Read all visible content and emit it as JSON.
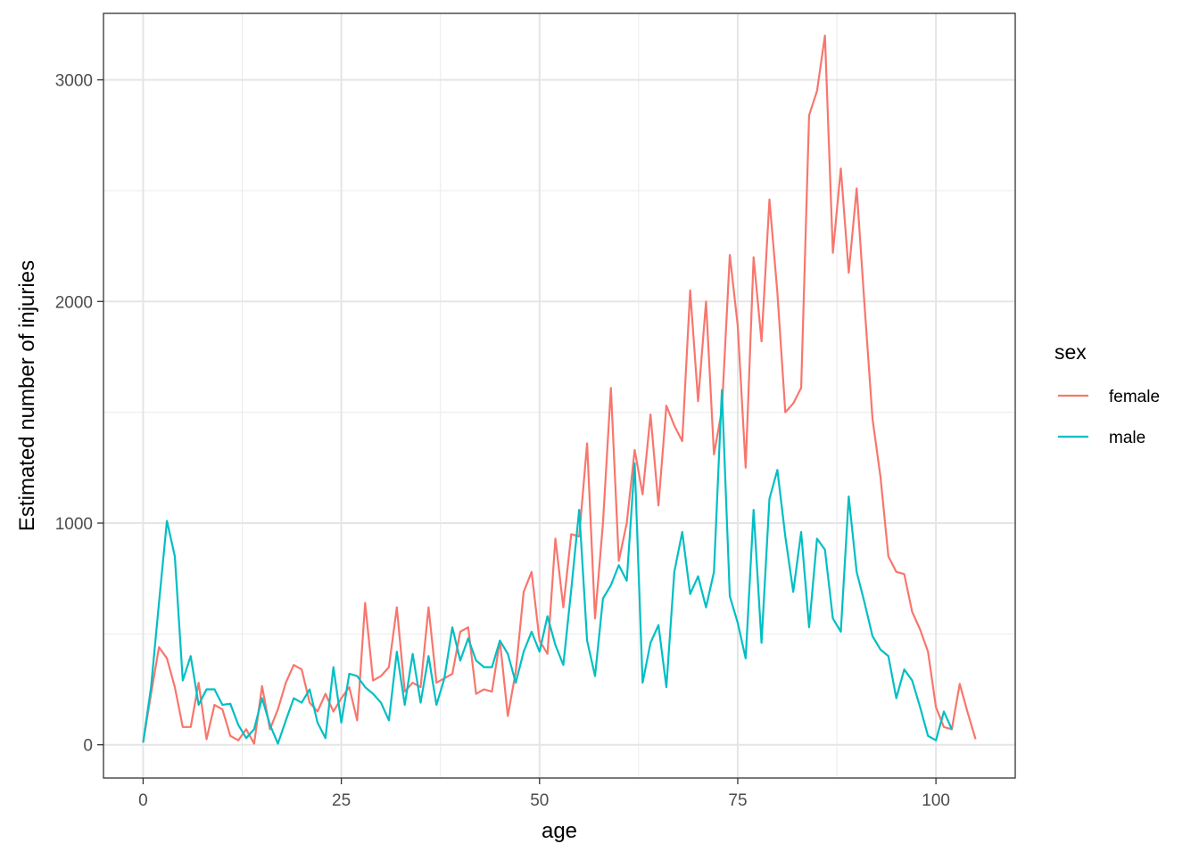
{
  "chart_data": {
    "type": "line",
    "xlabel": "age",
    "ylabel": "Estimated number of injuries",
    "xlim": [
      -5,
      110
    ],
    "ylim": [
      -150,
      3300
    ],
    "x_ticks": [
      0,
      25,
      50,
      75,
      100
    ],
    "y_ticks": [
      0,
      1000,
      2000,
      3000
    ],
    "grid": true,
    "legend": {
      "title": "sex",
      "position": "right"
    },
    "series": [
      {
        "name": "female",
        "color": "#F8766D",
        "x": [
          0,
          1,
          2,
          3,
          4,
          5,
          6,
          7,
          8,
          9,
          10,
          11,
          12,
          13,
          14,
          15,
          16,
          17,
          18,
          19,
          20,
          21,
          22,
          23,
          24,
          25,
          26,
          27,
          28,
          29,
          30,
          31,
          32,
          33,
          34,
          35,
          36,
          37,
          38,
          39,
          40,
          41,
          42,
          43,
          44,
          45,
          46,
          47,
          48,
          49,
          50,
          51,
          52,
          53,
          54,
          55,
          56,
          57,
          58,
          59,
          60,
          61,
          62,
          63,
          64,
          65,
          66,
          67,
          68,
          69,
          70,
          71,
          72,
          73,
          74,
          75,
          76,
          77,
          78,
          79,
          80,
          81,
          82,
          83,
          84,
          85,
          86,
          87,
          88,
          89,
          90,
          91,
          92,
          93,
          94,
          95,
          96,
          97,
          98,
          99,
          100,
          101,
          102,
          103,
          104,
          105
        ],
        "y": [
          10,
          230,
          440,
          390,
          260,
          80,
          80,
          280,
          25,
          180,
          160,
          40,
          20,
          70,
          5,
          265,
          70,
          160,
          280,
          360,
          340,
          190,
          150,
          230,
          150,
          210,
          260,
          110,
          640,
          290,
          310,
          350,
          620,
          240,
          280,
          260,
          620,
          280,
          300,
          320,
          510,
          530,
          230,
          250,
          240,
          470,
          130,
          330,
          690,
          780,
          470,
          410,
          930,
          620,
          950,
          940,
          1360,
          570,
          1000,
          1610,
          830,
          1000,
          1330,
          1130,
          1490,
          1080,
          1530,
          1440,
          1370,
          2050,
          1550,
          2000,
          1310,
          1510,
          2210,
          1890,
          1250,
          2200,
          1820,
          2460,
          2040,
          1500,
          1540,
          1610,
          2840,
          2950,
          3200,
          2220,
          2600,
          2130,
          2510,
          1980,
          1470,
          1210,
          850,
          780,
          770,
          600,
          520,
          420,
          170,
          80,
          70,
          275,
          145,
          25
        ]
      },
      {
        "name": "male",
        "color": "#00BFC4",
        "x": [
          0,
          1,
          2,
          3,
          4,
          5,
          6,
          7,
          8,
          9,
          10,
          11,
          12,
          13,
          14,
          15,
          16,
          17,
          18,
          19,
          20,
          21,
          22,
          23,
          24,
          25,
          26,
          27,
          28,
          29,
          30,
          31,
          32,
          33,
          34,
          35,
          36,
          37,
          38,
          39,
          40,
          41,
          42,
          43,
          44,
          45,
          46,
          47,
          48,
          49,
          50,
          51,
          52,
          53,
          54,
          55,
          56,
          57,
          58,
          59,
          60,
          61,
          62,
          63,
          64,
          65,
          66,
          67,
          68,
          69,
          70,
          71,
          72,
          73,
          74,
          75,
          76,
          77,
          78,
          79,
          80,
          81,
          82,
          83,
          84,
          85,
          86,
          87,
          88,
          89,
          90,
          91,
          92,
          93,
          94,
          95,
          96,
          97,
          98,
          99,
          100,
          101,
          102
        ],
        "y": [
          10,
          260,
          640,
          1010,
          850,
          290,
          400,
          180,
          250,
          250,
          180,
          185,
          90,
          30,
          70,
          210,
          90,
          5,
          110,
          210,
          190,
          250,
          100,
          30,
          350,
          100,
          320,
          310,
          260,
          230,
          190,
          110,
          420,
          180,
          410,
          190,
          400,
          180,
          300,
          530,
          380,
          480,
          380,
          350,
          350,
          470,
          410,
          280,
          420,
          510,
          420,
          580,
          450,
          360,
          700,
          1060,
          470,
          310,
          660,
          720,
          810,
          740,
          1270,
          280,
          460,
          540,
          260,
          780,
          960,
          680,
          760,
          620,
          780,
          1600,
          670,
          550,
          390,
          1060,
          460,
          1110,
          1240,
          940,
          690,
          960,
          530,
          930,
          880,
          570,
          510,
          1120,
          780,
          640,
          490,
          430,
          400,
          210,
          340,
          290,
          170,
          40,
          20,
          150,
          70
        ]
      }
    ]
  }
}
